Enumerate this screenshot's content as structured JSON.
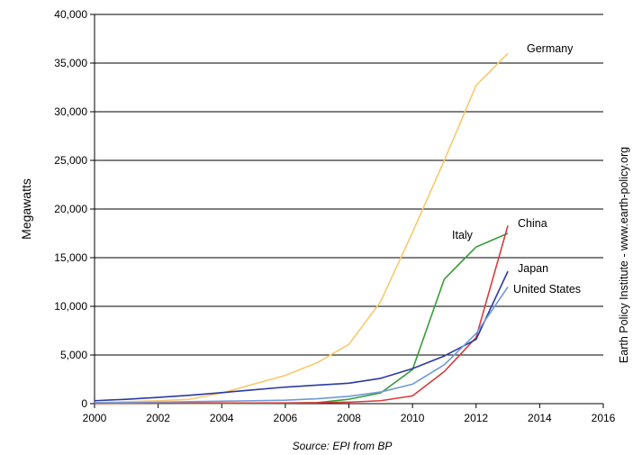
{
  "chart_data": {
    "type": "line",
    "ylabel": "Megawatts",
    "xlim": [
      2000,
      2016
    ],
    "ylim": [
      0,
      40000
    ],
    "x_ticks": [
      2000,
      2002,
      2004,
      2006,
      2008,
      2010,
      2012,
      2014,
      2016
    ],
    "y_ticks": [
      0,
      5000,
      10000,
      15000,
      20000,
      25000,
      30000,
      35000,
      40000
    ],
    "x_tick_labels": [
      "2000",
      "2002",
      "2004",
      "2006",
      "2008",
      "2010",
      "2012",
      "2014",
      "2016"
    ],
    "y_tick_labels": [
      "0",
      "5,000",
      "10,000",
      "15,000",
      "20,000",
      "25,000",
      "30,000",
      "35,000",
      "40,000"
    ],
    "grid": "horizontal",
    "source": "Source: EPI from BP",
    "credit": "Earth Policy Institute - www.earth-policy.org",
    "x": [
      2000,
      2001,
      2002,
      2003,
      2004,
      2005,
      2006,
      2007,
      2008,
      2009,
      2010,
      2011,
      2012,
      2013
    ],
    "series": [
      {
        "name": "Germany",
        "color": "#f9c96b",
        "values": [
          100,
          200,
          300,
          450,
          1100,
          2000,
          2900,
          4200,
          6100,
          10500,
          17600,
          25000,
          32700,
          36000
        ]
      },
      {
        "name": "Italy",
        "color": "#3a9c3a",
        "values": [
          20,
          20,
          20,
          30,
          30,
          40,
          50,
          100,
          450,
          1100,
          3500,
          12800,
          16100,
          17500
        ]
      },
      {
        "name": "China",
        "color": "#d83b3b",
        "values": [
          20,
          30,
          40,
          50,
          60,
          70,
          80,
          100,
          150,
          300,
          800,
          3300,
          6800,
          18300
        ]
      },
      {
        "name": "Japan",
        "color": "#2c3aa0",
        "values": [
          300,
          450,
          640,
          860,
          1130,
          1420,
          1700,
          1900,
          2100,
          2600,
          3600,
          4900,
          6600,
          13600
        ]
      },
      {
        "name": "United States",
        "color": "#6f9ad6",
        "values": [
          100,
          100,
          150,
          200,
          250,
          300,
          350,
          500,
          750,
          1200,
          2000,
          4000,
          7200,
          12000
        ]
      }
    ]
  }
}
